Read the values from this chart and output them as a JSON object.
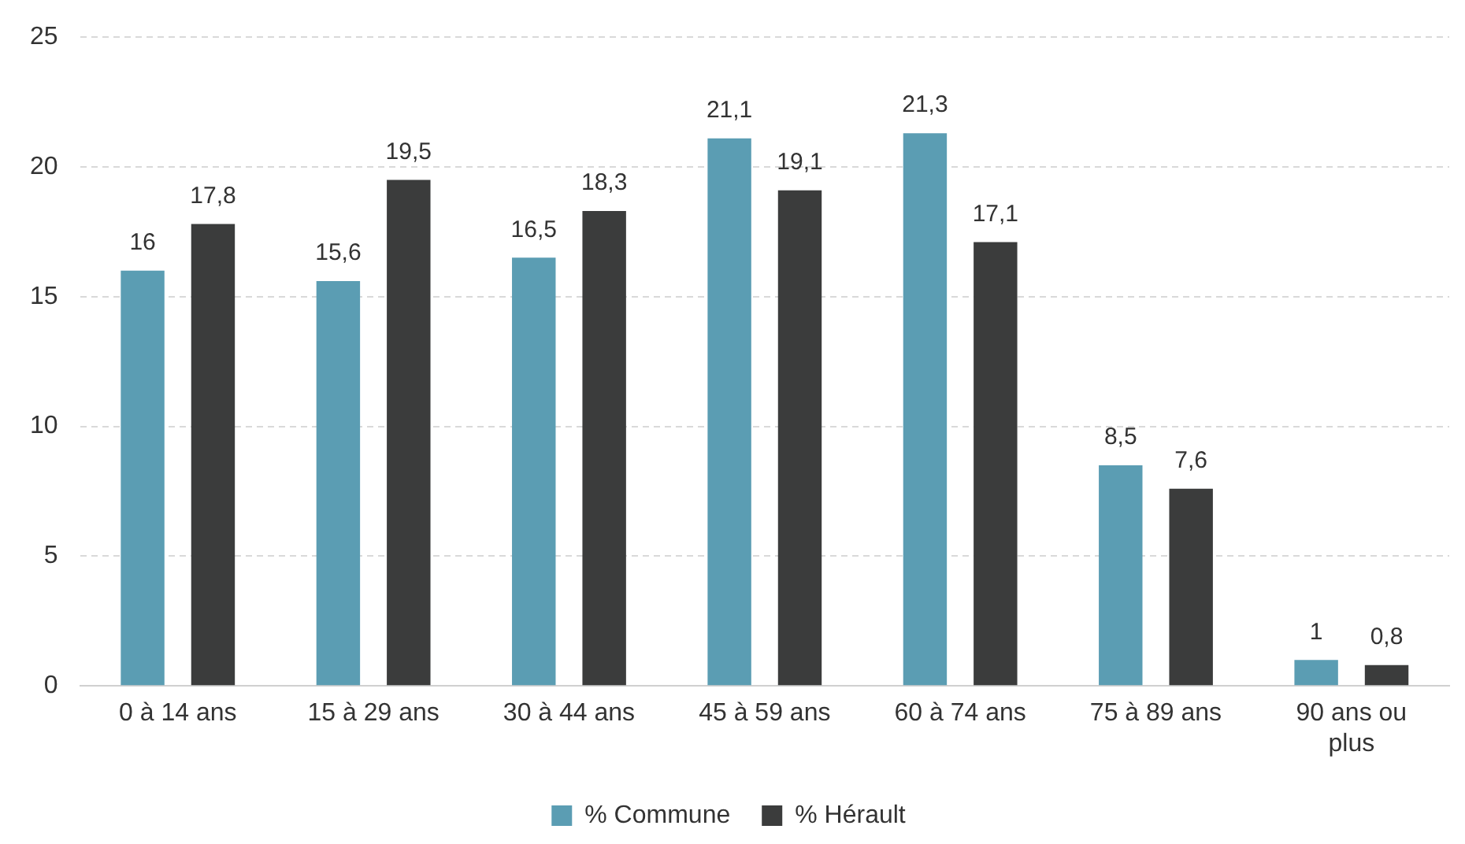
{
  "chart_data": {
    "type": "bar",
    "categories": [
      "0 à 14 ans",
      "15 à 29 ans",
      "30 à 44 ans",
      "45 à 59 ans",
      "60 à 74 ans",
      "75 à 89 ans",
      "90 ans ou plus"
    ],
    "series": [
      {
        "name": "% Commune",
        "color": "#5b9db3",
        "values": [
          16,
          15.6,
          16.5,
          21.1,
          21.3,
          8.5,
          1
        ],
        "value_labels": [
          "16",
          "15,6",
          "16,5",
          "21,1",
          "21,3",
          "8,5",
          "1"
        ]
      },
      {
        "name": "% Hérault",
        "color": "#3b3c3c",
        "values": [
          17.8,
          19.5,
          18.3,
          19.1,
          17.1,
          7.6,
          0.8
        ],
        "value_labels": [
          "17,8",
          "19,5",
          "18,3",
          "19,1",
          "17,1",
          "7,6",
          "0,8"
        ]
      }
    ],
    "ylim": [
      0,
      25
    ],
    "yticks": [
      0,
      5,
      10,
      15,
      20,
      25
    ],
    "grid": "y",
    "legend": "bottom"
  }
}
